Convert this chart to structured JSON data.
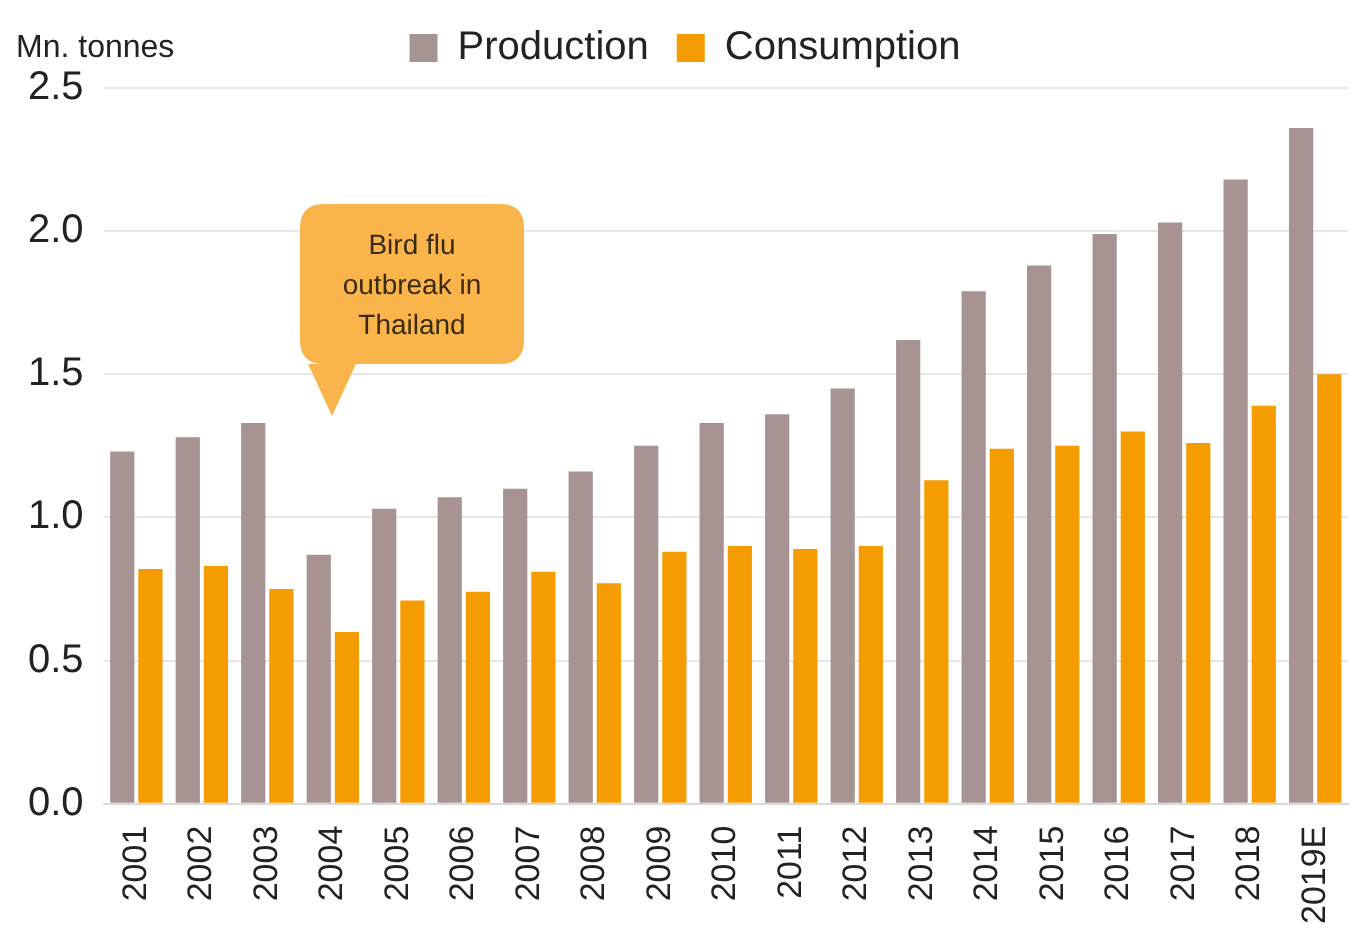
{
  "chart_data": {
    "type": "bar",
    "ylabel": "Mn. tonnes",
    "categories": [
      "2001",
      "2002",
      "2003",
      "2004",
      "2005",
      "2006",
      "2007",
      "2008",
      "2009",
      "2010",
      "2011",
      "2012",
      "2013",
      "2014",
      "2015",
      "2016",
      "2017",
      "2018",
      "2019E"
    ],
    "series": [
      {
        "name": "Production",
        "color": "#a89393",
        "values": [
          1.23,
          1.28,
          1.33,
          0.87,
          1.03,
          1.07,
          1.1,
          1.16,
          1.25,
          1.33,
          1.36,
          1.45,
          1.62,
          1.79,
          1.88,
          1.99,
          2.03,
          2.18,
          2.36
        ]
      },
      {
        "name": "Consumption",
        "color": "#f59c00",
        "values": [
          0.82,
          0.83,
          0.75,
          0.6,
          0.71,
          0.74,
          0.81,
          0.77,
          0.88,
          0.9,
          0.89,
          0.9,
          1.13,
          1.24,
          1.25,
          1.3,
          1.26,
          1.39,
          1.5
        ]
      }
    ],
    "ylim": [
      0,
      2.5
    ],
    "yticks": [
      {
        "value": 0,
        "label": "0.0"
      },
      {
        "value": 0.5,
        "label": "0.5"
      },
      {
        "value": 1,
        "label": "1.0"
      },
      {
        "value": 1.5,
        "label": "1.5"
      },
      {
        "value": 2,
        "label": "2.0"
      },
      {
        "value": 2.5,
        "label": "2.5"
      }
    ],
    "grid": "y",
    "legend": "top",
    "annotations": [
      "Bird flu outbreak in Thailand"
    ]
  }
}
